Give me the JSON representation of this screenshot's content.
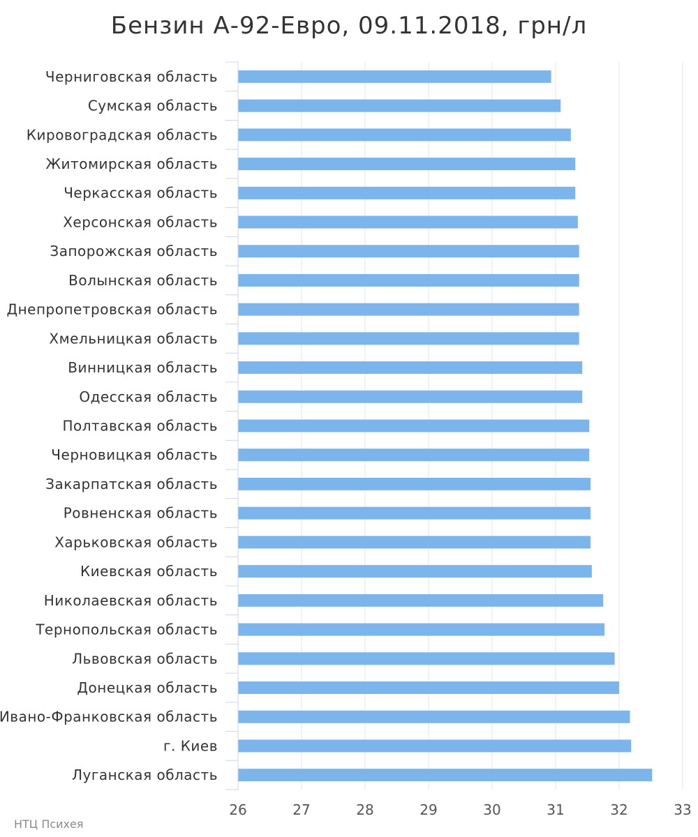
{
  "chart_data": {
    "type": "bar",
    "orientation": "horizontal",
    "title": "Бензин А-92-Евро, 09.11.2018, грн/л",
    "xlabel": "",
    "ylabel": "",
    "xlim": [
      26,
      33
    ],
    "xticks": [
      "26",
      "27",
      "28",
      "29",
      "30",
      "31",
      "32",
      "33"
    ],
    "grid": true,
    "bar_color": "#7cb5ec",
    "categories": [
      "Черниговская область",
      "Сумская область",
      "Кировоградская область",
      "Житомирская область",
      "Черкасская область",
      "Херсонская область",
      "Запорожская область",
      "Волынская область",
      "Днепропетровская область",
      "Хмельницкая область",
      "Винницкая область",
      "Одесская область",
      "Полтавская область",
      "Черновицкая область",
      "Закарпатская область",
      "Ровненская область",
      "Харьковская область",
      "Киевская область",
      "Николаевская область",
      "Тернопольская область",
      "Львовская область",
      "Донецкая область",
      "Ивано-Франковская область",
      "г. Киев",
      "Луганская область"
    ],
    "values": [
      30.93,
      31.08,
      31.24,
      31.31,
      31.31,
      31.35,
      31.37,
      31.37,
      31.37,
      31.37,
      31.42,
      31.42,
      31.53,
      31.53,
      31.55,
      31.55,
      31.55,
      31.57,
      31.75,
      31.77,
      31.93,
      32.0,
      32.17,
      32.19,
      32.52
    ]
  },
  "credit": "НТЦ Психея"
}
